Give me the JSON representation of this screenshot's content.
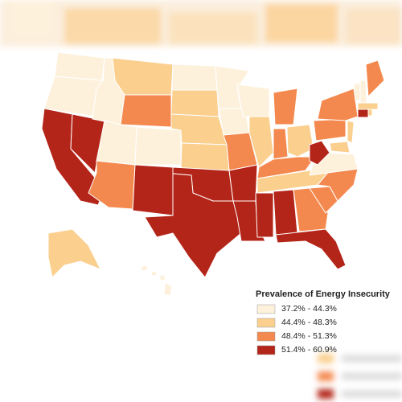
{
  "legend": {
    "title": "Prevalence of Energy Insecurity",
    "items": [
      {
        "label": "37.2% - 44.3%",
        "color": "#fdf1dc"
      },
      {
        "label": "44.4% - 48.3%",
        "color": "#fbcf8e"
      },
      {
        "label": "48.4% - 51.3%",
        "color": "#f4894f"
      },
      {
        "label": "51.4% - 60.9%",
        "color": "#b42519"
      }
    ]
  }
}
